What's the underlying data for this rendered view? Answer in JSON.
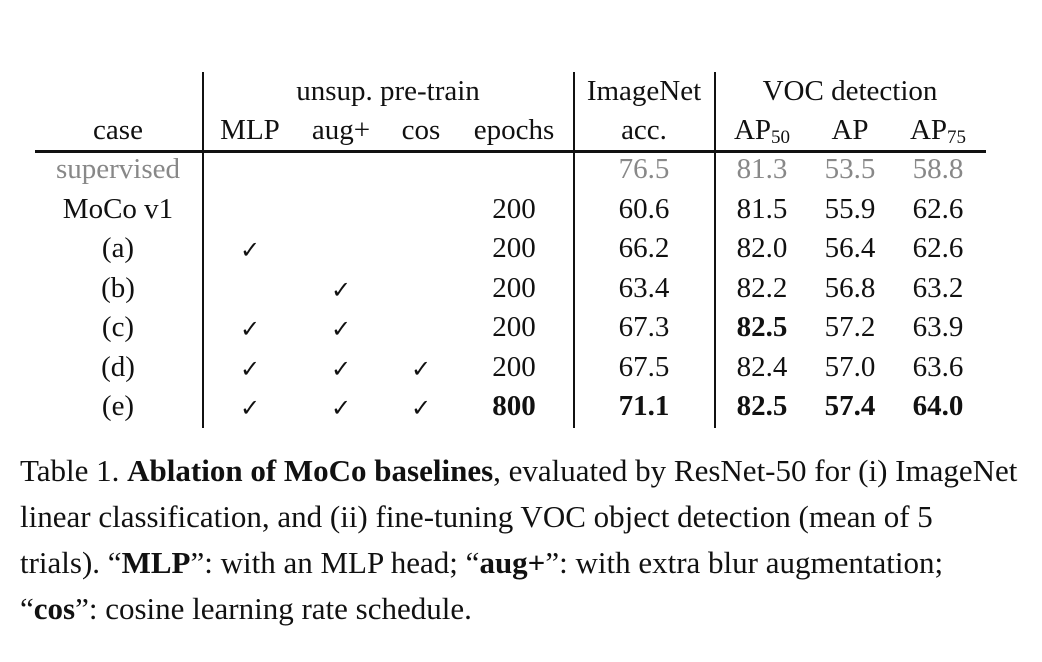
{
  "header": {
    "group_pretrain": "unsup. pre-train",
    "group_imagenet": "ImageNet",
    "group_voc": "VOC detection",
    "col_case": "case",
    "col_mlp": "MLP",
    "col_aug": "aug+",
    "col_cos": "cos",
    "col_epochs": "epochs",
    "col_acc": "acc.",
    "col_ap50_base": "AP",
    "col_ap50_sub": "50",
    "col_ap": "AP",
    "col_ap75_base": "AP",
    "col_ap75_sub": "75"
  },
  "check_mark": "✓",
  "rows": [
    {
      "case": "supervised",
      "mlp": false,
      "aug": false,
      "cos": false,
      "epochs": "",
      "acc": "76.5",
      "ap50": "81.3",
      "ap": "53.5",
      "ap75": "58.8",
      "style": "gray",
      "bold": []
    },
    {
      "case": "MoCo v1",
      "mlp": false,
      "aug": false,
      "cos": false,
      "epochs": "200",
      "acc": "60.6",
      "ap50": "81.5",
      "ap": "55.9",
      "ap75": "62.6",
      "style": "normal",
      "bold": []
    },
    {
      "case": "(a)",
      "mlp": true,
      "aug": false,
      "cos": false,
      "epochs": "200",
      "acc": "66.2",
      "ap50": "82.0",
      "ap": "56.4",
      "ap75": "62.6",
      "style": "normal",
      "bold": []
    },
    {
      "case": "(b)",
      "mlp": false,
      "aug": true,
      "cos": false,
      "epochs": "200",
      "acc": "63.4",
      "ap50": "82.2",
      "ap": "56.8",
      "ap75": "63.2",
      "style": "normal",
      "bold": []
    },
    {
      "case": "(c)",
      "mlp": true,
      "aug": true,
      "cos": false,
      "epochs": "200",
      "acc": "67.3",
      "ap50": "82.5",
      "ap": "57.2",
      "ap75": "63.9",
      "style": "normal",
      "bold": [
        "ap50"
      ]
    },
    {
      "case": "(d)",
      "mlp": true,
      "aug": true,
      "cos": true,
      "epochs": "200",
      "acc": "67.5",
      "ap50": "82.4",
      "ap": "57.0",
      "ap75": "63.6",
      "style": "normal",
      "bold": []
    },
    {
      "case": "(e)",
      "mlp": true,
      "aug": true,
      "cos": true,
      "epochs": "800",
      "acc": "71.1",
      "ap50": "82.5",
      "ap": "57.4",
      "ap75": "64.0",
      "style": "normal",
      "bold": [
        "epochs",
        "acc",
        "ap50",
        "ap",
        "ap75"
      ]
    }
  ],
  "caption": {
    "label": "Table 1.",
    "bold_title": "Ablation of MoCo baselines",
    "text1": ", evaluated by ResNet-50 for (i) ImageNet linear classification, and (ii) fine-tuning VOC object detection (mean of 5 trials). “",
    "bold_mlp": "MLP",
    "text2": "”: with an MLP head; “",
    "bold_aug": "aug+",
    "text3": "”: with extra blur augmentation; “",
    "bold_cos": "cos",
    "text4": "”: cosine learning rate schedule."
  },
  "colors": {
    "text": "#111111",
    "supervised_row": "#888888"
  }
}
